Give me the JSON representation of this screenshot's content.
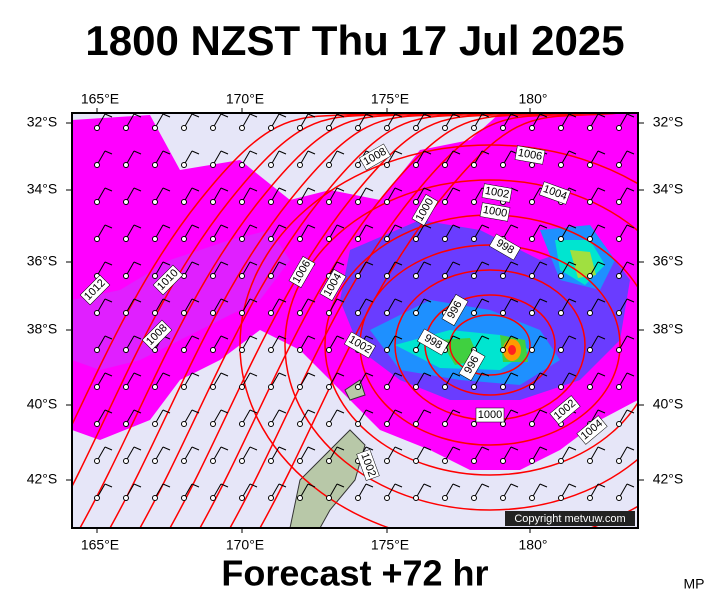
{
  "title": "1800 NZST Thu 17 Jul 2025",
  "longitude_labels": [
    "165°E",
    "170°E",
    "175°E",
    "180°"
  ],
  "latitude_labels": [
    "32°S",
    "34°S",
    "36°S",
    "38°S",
    "40°S",
    "42°S"
  ],
  "isobar_labels": [
    1008,
    1006,
    1002,
    1004,
    1000,
    1000,
    998,
    1006,
    1004,
    1012,
    1010,
    1008,
    996,
    998,
    1002,
    996,
    1000,
    1002,
    1004,
    1002
  ],
  "copyright": "Copyright metvuw.com",
  "forecast": "Forecast +72 hr",
  "corner_label": "MP"
}
